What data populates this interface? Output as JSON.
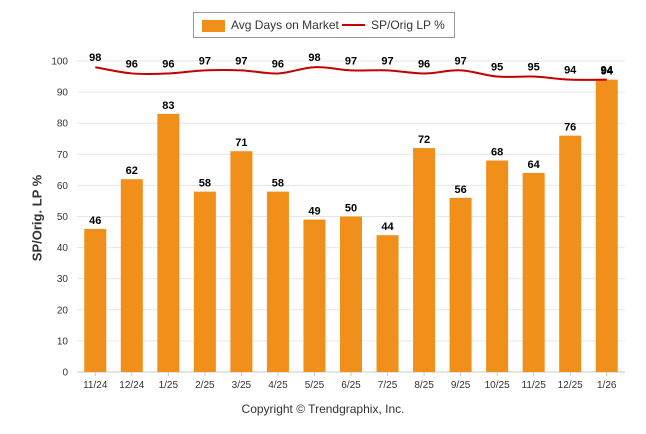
{
  "chart_data": {
    "type": "bar",
    "title": "",
    "xlabel": "",
    "ylabel": "SP/Orig. LP %",
    "ylim": [
      0,
      100
    ],
    "yticks": [
      0,
      10,
      20,
      30,
      40,
      50,
      60,
      70,
      80,
      90,
      100
    ],
    "grid": true,
    "legend_position": "top-center",
    "categories": [
      "11/24",
      "12/24",
      "1/25",
      "2/25",
      "3/25",
      "4/25",
      "5/25",
      "6/25",
      "7/25",
      "8/25",
      "9/25",
      "10/25",
      "11/25",
      "12/25",
      "1/26"
    ],
    "series": [
      {
        "name": "Avg Days on Market",
        "type": "bar",
        "color": "#f0901a",
        "values": [
          46,
          62,
          83,
          58,
          71,
          58,
          49,
          50,
          44,
          72,
          56,
          68,
          64,
          76,
          94
        ]
      },
      {
        "name": "SP/Orig LP %",
        "type": "line",
        "color": "#c40000",
        "values": [
          98,
          96,
          96,
          97,
          97,
          96,
          98,
          97,
          97,
          96,
          97,
          95,
          95,
          94,
          94
        ]
      }
    ]
  },
  "legend": {
    "bar_label": "Avg Days on Market",
    "line_label": "SP/Orig LP %"
  },
  "footer": {
    "copyright": "Copyright © Trendgraphix, Inc."
  }
}
